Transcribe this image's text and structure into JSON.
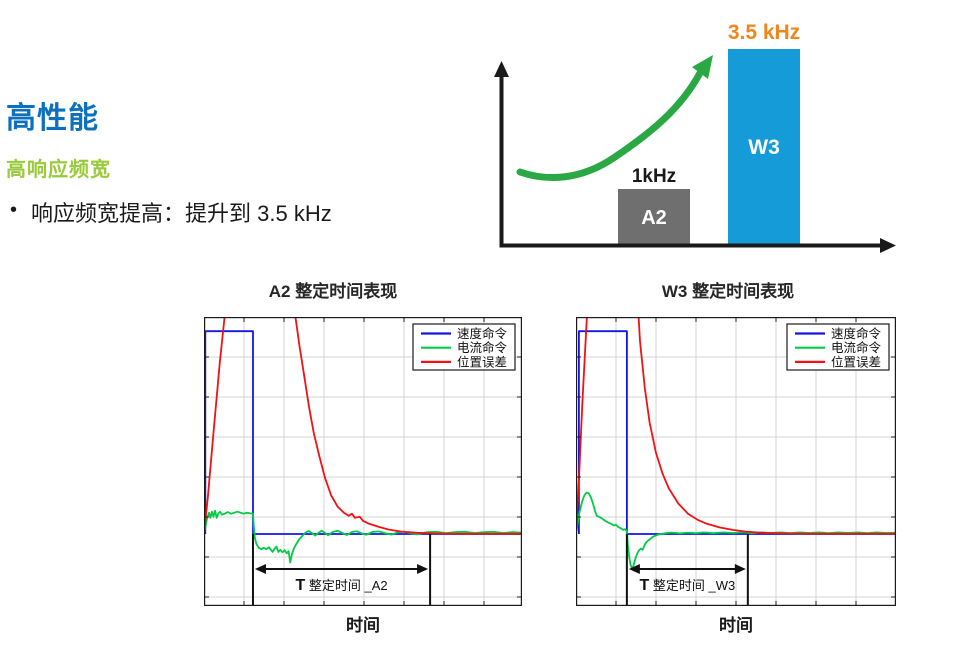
{
  "header": {
    "title": "高性能",
    "subtitle": "高响应频宽",
    "bullet_marker": "•",
    "bullet": "响应频宽提高：提升到 3.5 kHz"
  },
  "colors": {
    "heading_blue": "#0c70bd",
    "sub_green": "#99ca3b",
    "text_dark": "#1a1a1a",
    "grid": "#d4d4d4",
    "plot_border": "#1a1a1a",
    "marker_black": "#111111"
  },
  "chart_data": [
    {
      "type": "bar",
      "name": "response-bandwidth-comparison",
      "categories": [
        "A2",
        "W3"
      ],
      "values": [
        1,
        3.5
      ],
      "unit": "kHz",
      "value_labels": [
        "1kHz",
        "3.5 kHz"
      ],
      "bar_colors": [
        "#6f6f6f",
        "#169bd9"
      ],
      "label_colors": [
        "#1a1a1a",
        "#f0861c"
      ],
      "bar_text_color": "#ffffff",
      "axis_color": "#1a1a1a",
      "arrow_color": "#2aa844",
      "annotation": "green rising arrow from A2 to W3"
    },
    {
      "type": "line",
      "title": "A2 整定时间表现",
      "xlabel": "时间",
      "ylim": [
        -0.355,
        1.07
      ],
      "grid": true,
      "legend_position": "top-right",
      "legend": [
        "速度命令",
        "电流命令",
        "位置误差"
      ],
      "annotation": {
        "t_start": 0.154,
        "t_end": 0.711,
        "label": "T 整定时间 _A2",
        "label_prefix": "T",
        "label_rest": " 整定时间 _A2"
      },
      "series": [
        {
          "name": "速度命令",
          "color": "#1414e8",
          "points": [
            [
              0.004,
              0
            ],
            [
              0.004,
              1
            ],
            [
              0.154,
              1
            ],
            [
              0.154,
              0
            ],
            [
              1,
              0
            ]
          ]
        },
        {
          "name": "电流命令",
          "color": "#00cc44",
          "points": [
            [
              0,
              0
            ],
            [
              0.005,
              0.04
            ],
            [
              0.01,
              0.08
            ],
            [
              0.016,
              0.105
            ],
            [
              0.02,
              0.08
            ],
            [
              0.025,
              0.11
            ],
            [
              0.03,
              0.085
            ],
            [
              0.035,
              0.115
            ],
            [
              0.04,
              0.08
            ],
            [
              0.045,
              0.1
            ],
            [
              0.05,
              0.11
            ],
            [
              0.057,
              0.095
            ],
            [
              0.065,
              0.1
            ],
            [
              0.075,
              0.108
            ],
            [
              0.085,
              0.1
            ],
            [
              0.095,
              0.105
            ],
            [
              0.105,
              0.11
            ],
            [
              0.115,
              0.105
            ],
            [
              0.125,
              0.1
            ],
            [
              0.135,
              0.105
            ],
            [
              0.145,
              0.102
            ],
            [
              0.154,
              0.1
            ],
            [
              0.157,
              0.03
            ],
            [
              0.16,
              -0.02
            ],
            [
              0.165,
              -0.05
            ],
            [
              0.172,
              -0.068
            ],
            [
              0.18,
              -0.075
            ],
            [
              0.188,
              -0.068
            ],
            [
              0.196,
              -0.075
            ],
            [
              0.204,
              -0.065
            ],
            [
              0.21,
              -0.078
            ],
            [
              0.216,
              -0.088
            ],
            [
              0.222,
              -0.072
            ],
            [
              0.228,
              -0.062
            ],
            [
              0.234,
              -0.088
            ],
            [
              0.24,
              -0.078
            ],
            [
              0.247,
              -0.09
            ],
            [
              0.253,
              -0.08
            ],
            [
              0.26,
              -0.095
            ],
            [
              0.266,
              -0.085
            ],
            [
              0.271,
              -0.14
            ],
            [
              0.277,
              -0.095
            ],
            [
              0.283,
              -0.07
            ],
            [
              0.29,
              -0.05
            ],
            [
              0.3,
              -0.025
            ],
            [
              0.31,
              -0.008
            ],
            [
              0.32,
              0.008
            ],
            [
              0.33,
              0.015
            ],
            [
              0.34,
              0.004
            ],
            [
              0.35,
              -0.008
            ],
            [
              0.36,
              0.006
            ],
            [
              0.37,
              0.016
            ],
            [
              0.38,
              0.006
            ],
            [
              0.39,
              -0.006
            ],
            [
              0.405,
              0.01
            ],
            [
              0.42,
              0.016
            ],
            [
              0.435,
              0.005
            ],
            [
              0.45,
              -0.005
            ],
            [
              0.465,
              0.01
            ],
            [
              0.48,
              0.014
            ],
            [
              0.495,
              0.004
            ],
            [
              0.51,
              -0.004
            ],
            [
              0.53,
              0.01
            ],
            [
              0.55,
              0.013
            ],
            [
              0.57,
              0.004
            ],
            [
              0.59,
              -0.003
            ],
            [
              0.61,
              0.009
            ],
            [
              0.63,
              0.012
            ],
            [
              0.65,
              0.004
            ],
            [
              0.67,
              -0.002
            ],
            [
              0.7,
              0.009
            ],
            [
              0.73,
              0.011
            ],
            [
              0.76,
              0.004
            ],
            [
              0.79,
              0.009
            ],
            [
              0.82,
              0.011
            ],
            [
              0.85,
              0.005
            ],
            [
              0.88,
              0.009
            ],
            [
              0.91,
              0.011
            ],
            [
              0.94,
              0.005
            ],
            [
              0.97,
              0.009
            ],
            [
              1,
              0.007
            ]
          ]
        },
        {
          "name": "位置误差",
          "color": "#f01212",
          "points": [
            [
              0,
              0
            ],
            [
              0.012,
              0.18
            ],
            [
              0.03,
              0.5
            ],
            [
              0.05,
              0.85
            ],
            [
              0.07,
              1.15
            ],
            [
              0.1,
              1.8
            ],
            [
              0.14,
              2.4
            ],
            [
              0.18,
              2.6
            ],
            [
              0.22,
              2.1
            ],
            [
              0.26,
              1.5
            ],
            [
              0.285,
              1.1
            ],
            [
              0.3,
              0.93
            ],
            [
              0.315,
              0.78
            ],
            [
              0.33,
              0.63
            ],
            [
              0.345,
              0.5
            ],
            [
              0.36,
              0.4
            ],
            [
              0.38,
              0.28
            ],
            [
              0.4,
              0.19
            ],
            [
              0.42,
              0.135
            ],
            [
              0.44,
              0.105
            ],
            [
              0.455,
              0.09
            ],
            [
              0.465,
              0.1
            ],
            [
              0.475,
              0.08
            ],
            [
              0.49,
              0.085
            ],
            [
              0.5,
              0.065
            ],
            [
              0.52,
              0.05
            ],
            [
              0.55,
              0.035
            ],
            [
              0.58,
              0.022
            ],
            [
              0.62,
              0.012
            ],
            [
              0.67,
              0.006
            ],
            [
              0.72,
              0.003
            ],
            [
              0.8,
              0.001
            ],
            [
              1,
              0.001
            ]
          ]
        }
      ]
    },
    {
      "type": "line",
      "title": "W3 整定时间表现",
      "xlabel": "时间",
      "ylim": [
        -0.355,
        1.07
      ],
      "grid": true,
      "legend_position": "top-right",
      "legend": [
        "速度命令",
        "电流命令",
        "位置误差"
      ],
      "annotation": {
        "t_start": 0.159,
        "t_end": 0.537,
        "label": "T 整定时间 _W3",
        "label_prefix": "T",
        "label_rest": " 整定时间 _W3"
      },
      "series": [
        {
          "name": "速度命令",
          "color": "#1414e8",
          "points": [
            [
              0.009,
              0
            ],
            [
              0.009,
              1
            ],
            [
              0.159,
              1
            ],
            [
              0.159,
              0
            ],
            [
              1,
              0
            ]
          ]
        },
        {
          "name": "电流命令",
          "color": "#00cc44",
          "points": [
            [
              0,
              0
            ],
            [
              0.005,
              0.05
            ],
            [
              0.01,
              0.1
            ],
            [
              0.018,
              0.155
            ],
            [
              0.026,
              0.19
            ],
            [
              0.033,
              0.205
            ],
            [
              0.04,
              0.2
            ],
            [
              0.047,
              0.18
            ],
            [
              0.054,
              0.145
            ],
            [
              0.06,
              0.11
            ],
            [
              0.065,
              0.09
            ],
            [
              0.072,
              0.085
            ],
            [
              0.08,
              0.078
            ],
            [
              0.09,
              0.066
            ],
            [
              0.1,
              0.057
            ],
            [
              0.11,
              0.05
            ],
            [
              0.118,
              0.042
            ],
            [
              0.125,
              0.046
            ],
            [
              0.132,
              0.035
            ],
            [
              0.14,
              0.028
            ],
            [
              0.148,
              0.02
            ],
            [
              0.153,
              0.024
            ],
            [
              0.159,
              0.015
            ],
            [
              0.162,
              -0.05
            ],
            [
              0.166,
              -0.11
            ],
            [
              0.17,
              -0.15
            ],
            [
              0.175,
              -0.17
            ],
            [
              0.18,
              -0.155
            ],
            [
              0.184,
              -0.13
            ],
            [
              0.188,
              -0.11
            ],
            [
              0.193,
              -0.09
            ],
            [
              0.198,
              -0.078
            ],
            [
              0.203,
              -0.072
            ],
            [
              0.208,
              -0.078
            ],
            [
              0.213,
              -0.058
            ],
            [
              0.218,
              -0.044
            ],
            [
              0.224,
              -0.034
            ],
            [
              0.232,
              -0.024
            ],
            [
              0.24,
              -0.014
            ],
            [
              0.25,
              -0.007
            ],
            [
              0.26,
              -0.002
            ],
            [
              0.28,
              0.004
            ],
            [
              0.3,
              0.007
            ],
            [
              0.325,
              0.003
            ],
            [
              0.35,
              0.007
            ],
            [
              0.375,
              0.004
            ],
            [
              0.4,
              0.008
            ],
            [
              0.43,
              0.004
            ],
            [
              0.46,
              0.008
            ],
            [
              0.49,
              0.005
            ],
            [
              0.52,
              0.008
            ],
            [
              0.55,
              0.004
            ],
            [
              0.58,
              0.008
            ],
            [
              0.61,
              0.005
            ],
            [
              0.64,
              0.008
            ],
            [
              0.67,
              0.004
            ],
            [
              0.7,
              0.008
            ],
            [
              0.73,
              0.005
            ],
            [
              0.76,
              0.008
            ],
            [
              0.79,
              0.004
            ],
            [
              0.82,
              0.008
            ],
            [
              0.85,
              0.005
            ],
            [
              0.88,
              0.008
            ],
            [
              0.91,
              0.004
            ],
            [
              0.94,
              0.008
            ],
            [
              0.97,
              0.005
            ],
            [
              1,
              0.006
            ]
          ]
        },
        {
          "name": "位置误差",
          "color": "#f01212",
          "points": [
            [
              0,
              0
            ],
            [
              0.01,
              0.3
            ],
            [
              0.02,
              0.65
            ],
            [
              0.03,
              0.95
            ],
            [
              0.045,
              1.4
            ],
            [
              0.07,
              2.4
            ],
            [
              0.1,
              3.2
            ],
            [
              0.13,
              3.0
            ],
            [
              0.16,
              2.2
            ],
            [
              0.18,
              1.5
            ],
            [
              0.2,
              0.95
            ],
            [
              0.215,
              0.72
            ],
            [
              0.23,
              0.55
            ],
            [
              0.25,
              0.4
            ],
            [
              0.27,
              0.3
            ],
            [
              0.29,
              0.225
            ],
            [
              0.32,
              0.15
            ],
            [
              0.35,
              0.1
            ],
            [
              0.38,
              0.07
            ],
            [
              0.41,
              0.05
            ],
            [
              0.45,
              0.032
            ],
            [
              0.49,
              0.02
            ],
            [
              0.53,
              0.012
            ],
            [
              0.58,
              0.006
            ],
            [
              0.65,
              0.003
            ],
            [
              0.75,
              0.001
            ],
            [
              1,
              0.001
            ]
          ]
        }
      ]
    }
  ]
}
